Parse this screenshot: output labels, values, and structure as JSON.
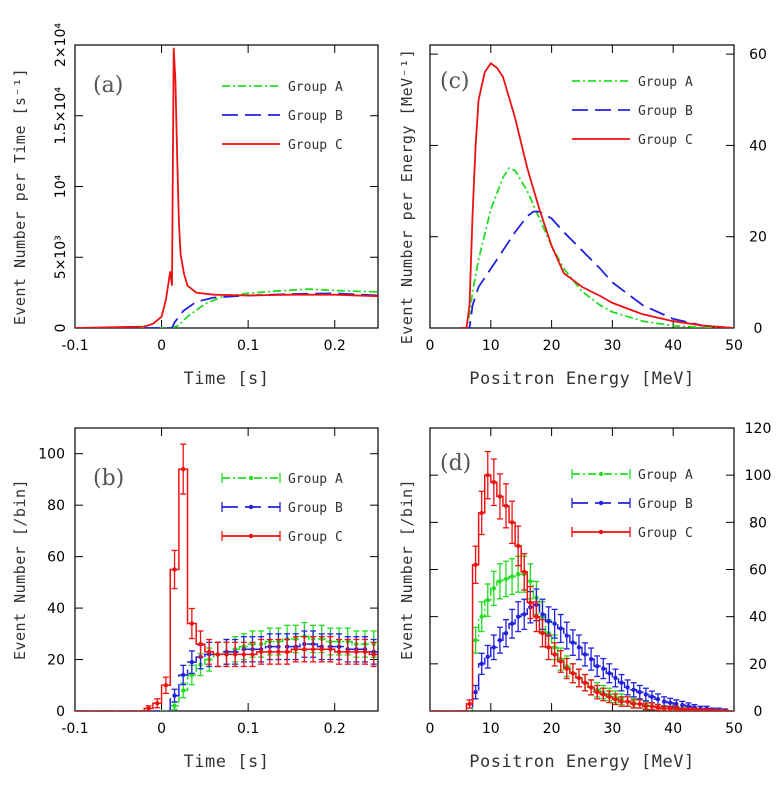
{
  "colors": {
    "groupA": "#22dd22",
    "groupB": "#2222dd",
    "groupC": "#ee1111"
  },
  "chart_data": [
    {
      "id": "a",
      "type": "line",
      "panel_label": "(a)",
      "xlabel": "Time [s]",
      "ylabel": "Event Number per Time [s⁻¹]",
      "xlim": [
        -0.1,
        0.25
      ],
      "ylim": [
        0,
        20000
      ],
      "xticks": [
        -0.1,
        0,
        0.1,
        0.2
      ],
      "xtick_labels": [
        "-0.1",
        "0",
        "0.1",
        "0.2"
      ],
      "yticks": [
        0,
        5000,
        10000,
        15000,
        20000
      ],
      "ytick_labels": [
        "0",
        "5×10³",
        "10⁴",
        "1.5×10⁴",
        "2×10⁴"
      ],
      "ytick_rotated": true,
      "legend": [
        "Group A",
        "Group B",
        "Group C"
      ],
      "series": [
        {
          "name": "Group A",
          "x": [
            -0.1,
            0.0,
            0.012,
            0.02,
            0.03,
            0.05,
            0.07,
            0.1,
            0.13,
            0.17,
            0.2,
            0.25
          ],
          "values": [
            0,
            0,
            0,
            200,
            800,
            1700,
            2200,
            2450,
            2600,
            2750,
            2650,
            2550
          ]
        },
        {
          "name": "Group B",
          "x": [
            -0.1,
            0.0,
            0.012,
            0.015,
            0.025,
            0.04,
            0.06,
            0.1,
            0.15,
            0.2,
            0.25
          ],
          "values": [
            0,
            0,
            0,
            400,
            1200,
            1850,
            2150,
            2300,
            2400,
            2450,
            2300
          ]
        },
        {
          "name": "Group C",
          "x": [
            -0.1,
            -0.02,
            -0.01,
            0.0,
            0.005,
            0.008,
            0.01,
            0.012,
            0.014,
            0.016,
            0.018,
            0.02,
            0.022,
            0.026,
            0.03,
            0.04,
            0.06,
            0.1,
            0.15,
            0.2,
            0.25
          ],
          "values": [
            0,
            100,
            300,
            800,
            2000,
            3200,
            4000,
            3000,
            19800,
            17500,
            12000,
            7500,
            5200,
            3800,
            3000,
            2500,
            2350,
            2300,
            2350,
            2350,
            2250
          ]
        }
      ]
    },
    {
      "id": "b",
      "type": "line",
      "panel_label": "(b)",
      "xlabel": "Time [s]",
      "ylabel": "Event Number [/bin]",
      "xlim": [
        -0.1,
        0.25
      ],
      "ylim": [
        0,
        110
      ],
      "xticks": [
        -0.1,
        0,
        0.1,
        0.2
      ],
      "xtick_labels": [
        "-0.1",
        "0",
        "0.1",
        "0.2"
      ],
      "yticks": [
        0,
        20,
        40,
        60,
        80,
        100
      ],
      "ytick_labels": [
        "0",
        "20",
        "40",
        "60",
        "80",
        "100"
      ],
      "legend": [
        "Group A",
        "Group B",
        "Group C"
      ],
      "bin_width": 0.01,
      "series": [
        {
          "name": "Group A",
          "x": [
            -0.095,
            -0.085,
            -0.075,
            -0.065,
            -0.055,
            -0.045,
            -0.035,
            -0.025,
            -0.015,
            -0.005,
            0.005,
            0.015,
            0.025,
            0.035,
            0.045,
            0.055,
            0.065,
            0.075,
            0.085,
            0.095,
            0.105,
            0.115,
            0.125,
            0.135,
            0.145,
            0.155,
            0.165,
            0.175,
            0.185,
            0.195,
            0.205,
            0.215,
            0.225,
            0.235,
            0.245
          ],
          "values": [
            0,
            0,
            0,
            0,
            0,
            0,
            0,
            0,
            0,
            0,
            0,
            2,
            8,
            14,
            18,
            20,
            22,
            23,
            24,
            25,
            26,
            26,
            27,
            27,
            28,
            28,
            29,
            28,
            28,
            27,
            27,
            27,
            26,
            26,
            26
          ]
        },
        {
          "name": "Group B",
          "x": [
            -0.095,
            -0.085,
            -0.075,
            -0.065,
            -0.055,
            -0.045,
            -0.035,
            -0.025,
            -0.015,
            -0.005,
            0.005,
            0.015,
            0.025,
            0.035,
            0.045,
            0.055,
            0.065,
            0.075,
            0.085,
            0.095,
            0.105,
            0.115,
            0.125,
            0.135,
            0.145,
            0.155,
            0.165,
            0.175,
            0.185,
            0.195,
            0.205,
            0.215,
            0.225,
            0.235,
            0.245
          ],
          "values": [
            0,
            0,
            0,
            0,
            0,
            0,
            0,
            0,
            0,
            0,
            0,
            6,
            14,
            19,
            21,
            22,
            22,
            23,
            23,
            24,
            24,
            24,
            25,
            25,
            25,
            25,
            26,
            26,
            25,
            25,
            25,
            24,
            24,
            24,
            23
          ]
        },
        {
          "name": "Group C",
          "x": [
            -0.095,
            -0.085,
            -0.075,
            -0.065,
            -0.055,
            -0.045,
            -0.035,
            -0.025,
            -0.015,
            -0.005,
            0.005,
            0.015,
            0.025,
            0.035,
            0.045,
            0.055,
            0.065,
            0.075,
            0.085,
            0.095,
            0.105,
            0.115,
            0.125,
            0.135,
            0.145,
            0.155,
            0.165,
            0.175,
            0.185,
            0.195,
            0.205,
            0.215,
            0.225,
            0.235,
            0.245
          ],
          "values": [
            0,
            0,
            0,
            0,
            0,
            0,
            0,
            0,
            1,
            3,
            10,
            55,
            94,
            34,
            26,
            23,
            22,
            22,
            22,
            22,
            22,
            23,
            23,
            23,
            23,
            24,
            24,
            24,
            24,
            24,
            23,
            23,
            23,
            23,
            22
          ]
        }
      ]
    },
    {
      "id": "c",
      "type": "line",
      "panel_label": "(c)",
      "xlabel": "Positron Energy [MeV]",
      "ylabel": "Event Number per Energy [MeV⁻¹]",
      "xlim": [
        0,
        50
      ],
      "ylim": [
        0,
        62
      ],
      "xticks": [
        0,
        10,
        20,
        30,
        40,
        50
      ],
      "xtick_labels": [
        "0",
        "10",
        "20",
        "30",
        "40",
        "50"
      ],
      "yticks": [
        0,
        20,
        40,
        60
      ],
      "ytick_labels": [
        "0",
        "20",
        "40",
        "60"
      ],
      "ytick_side": "right",
      "legend": [
        "Group A",
        "Group B",
        "Group C"
      ],
      "series": [
        {
          "name": "Group A",
          "x": [
            5,
            6,
            6.5,
            7,
            8,
            10,
            12,
            13,
            14,
            16,
            18,
            20,
            22,
            25,
            28,
            30,
            35,
            40,
            45,
            50
          ],
          "values": [
            0,
            0,
            3,
            8,
            15,
            26,
            33,
            35,
            34.5,
            30,
            24,
            18,
            13,
            8,
            5,
            3.5,
            1.5,
            0.5,
            0.1,
            0
          ]
        },
        {
          "name": "Group B",
          "x": [
            5,
            6.5,
            7,
            8,
            10,
            12,
            14,
            16,
            17,
            18,
            20,
            22,
            25,
            28,
            30,
            35,
            40,
            45,
            50
          ],
          "values": [
            0,
            0,
            5,
            9,
            13,
            17,
            21,
            24.5,
            25.5,
            25.5,
            24,
            21,
            17,
            13,
            10,
            5,
            2,
            0.5,
            0
          ]
        },
        {
          "name": "Group C",
          "x": [
            5,
            6,
            6.5,
            7,
            7.5,
            8,
            9,
            10,
            11,
            12,
            14,
            16,
            18,
            20,
            22,
            25,
            28,
            30,
            35,
            40,
            45,
            50
          ],
          "values": [
            0,
            0,
            5,
            25,
            40,
            50,
            56,
            58,
            57,
            55,
            46,
            35,
            26,
            18,
            12,
            9,
            7,
            5.5,
            3,
            1.5,
            0.5,
            0
          ]
        }
      ]
    },
    {
      "id": "d",
      "type": "line",
      "panel_label": "(d)",
      "xlabel": "Positron Energy [MeV]",
      "ylabel": "Event Number [/bin]",
      "xlim": [
        0,
        50
      ],
      "ylim": [
        0,
        120
      ],
      "xticks": [
        0,
        10,
        20,
        30,
        40,
        50
      ],
      "xtick_labels": [
        "0",
        "10",
        "20",
        "30",
        "40",
        "50"
      ],
      "yticks": [
        0,
        20,
        40,
        60,
        80,
        100,
        120
      ],
      "ytick_labels": [
        "0",
        "20",
        "40",
        "60",
        "80",
        "100",
        "120"
      ],
      "ytick_side": "right",
      "legend": [
        "Group A",
        "Group B",
        "Group C"
      ],
      "bin_width": 1,
      "series": [
        {
          "name": "Group A",
          "x": [
            0.5,
            1.5,
            2.5,
            3.5,
            4.5,
            5.5,
            6.5,
            7.5,
            8.5,
            9.5,
            10.5,
            11.5,
            12.5,
            13.5,
            14.5,
            15.5,
            16.5,
            17.5,
            18.5,
            19.5,
            20.5,
            21.5,
            22.5,
            23.5,
            24.5,
            25.5,
            26.5,
            27.5,
            28.5,
            29.5,
            30.5,
            31.5,
            32.5,
            33.5,
            34.5,
            35.5,
            36.5,
            37.5,
            38.5,
            39.5,
            40.5,
            41.5,
            42.5,
            43.5,
            44.5,
            45.5,
            46.5,
            47.5,
            48.5,
            49.5
          ],
          "values": [
            0,
            0,
            0,
            0,
            0,
            0,
            0,
            30,
            40,
            47,
            52,
            55,
            56,
            57,
            58,
            58,
            55,
            48,
            40,
            33,
            27,
            22,
            19,
            16,
            14,
            12,
            10,
            9,
            8,
            7,
            6,
            5,
            4,
            3.5,
            3,
            2.5,
            2,
            1.5,
            1.2,
            1,
            0.8,
            0.6,
            0.5,
            0.4,
            0.3,
            0.2,
            0.2,
            0.1,
            0.1,
            0
          ]
        },
        {
          "name": "Group B",
          "x": [
            0.5,
            1.5,
            2.5,
            3.5,
            4.5,
            5.5,
            6.5,
            7.5,
            8.5,
            9.5,
            10.5,
            11.5,
            12.5,
            13.5,
            14.5,
            15.5,
            16.5,
            17.5,
            18.5,
            19.5,
            20.5,
            21.5,
            22.5,
            23.5,
            24.5,
            25.5,
            26.5,
            27.5,
            28.5,
            29.5,
            30.5,
            31.5,
            32.5,
            33.5,
            34.5,
            35.5,
            36.5,
            37.5,
            38.5,
            39.5,
            40.5,
            41.5,
            42.5,
            43.5,
            44.5,
            45.5,
            46.5,
            47.5,
            48.5,
            49.5
          ],
          "values": [
            0,
            0,
            0,
            0,
            0,
            0,
            0,
            8,
            20,
            23,
            27,
            30,
            33,
            37,
            40,
            41,
            44,
            45,
            41,
            38,
            37,
            35,
            32,
            29,
            27,
            24,
            22,
            19,
            18,
            16,
            14,
            12,
            10,
            9,
            8,
            7,
            6,
            5,
            4,
            3.5,
            3,
            2.5,
            2,
            1.5,
            1,
            1,
            0.5,
            0.5,
            0.3,
            0
          ]
        },
        {
          "name": "Group C",
          "x": [
            0.5,
            1.5,
            2.5,
            3.5,
            4.5,
            5.5,
            6.5,
            7.5,
            8.5,
            9.5,
            10.5,
            11.5,
            12.5,
            13.5,
            14.5,
            15.5,
            16.5,
            17.5,
            18.5,
            19.5,
            20.5,
            21.5,
            22.5,
            23.5,
            24.5,
            25.5,
            26.5,
            27.5,
            28.5,
            29.5,
            30.5,
            31.5,
            32.5,
            33.5,
            34.5,
            35.5,
            36.5,
            37.5,
            38.5,
            39.5,
            40.5,
            41.5,
            42.5,
            43.5,
            44.5,
            45.5,
            46.5,
            47.5,
            48.5,
            49.5
          ],
          "values": [
            0,
            0,
            0,
            0,
            0,
            0,
            3,
            62,
            84,
            100,
            97,
            91,
            87,
            80,
            70,
            59,
            46,
            40,
            33,
            27,
            24,
            21,
            18,
            16,
            14,
            12,
            10,
            8,
            7,
            6,
            5,
            4,
            4,
            3,
            3,
            2,
            2,
            1.5,
            1,
            1,
            1,
            0.5,
            0.5,
            0.5,
            0.3,
            0.3,
            0.2,
            0.1,
            0.1,
            0
          ]
        }
      ]
    }
  ]
}
